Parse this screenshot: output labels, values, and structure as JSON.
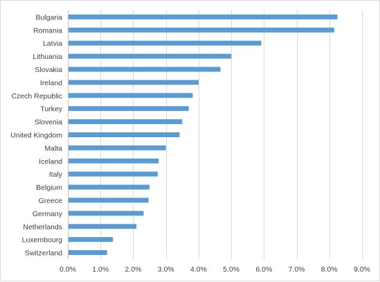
{
  "chart_data": {
    "type": "bar",
    "orientation": "horizontal",
    "categories": [
      "Bulgaria",
      "Romania",
      "Latvia",
      "Lithuania",
      "Slovakia",
      "Ireland",
      "Czech Republic",
      "Turkey",
      "Slovenia",
      "United Kingdom",
      "Malta",
      "Iceland",
      "Italy",
      "Belgium",
      "Greece",
      "Germany",
      "Netherlands",
      "Luxembourg",
      "Switzerland"
    ],
    "values": [
      8.25,
      8.15,
      5.92,
      5.0,
      4.67,
      4.0,
      3.82,
      3.7,
      3.5,
      3.42,
      3.0,
      2.78,
      2.75,
      2.5,
      2.47,
      2.32,
      2.1,
      1.38,
      1.2
    ],
    "value_unit": "%",
    "xlim": [
      0,
      9
    ],
    "x_ticks": [
      0,
      1,
      2,
      3,
      4,
      5,
      6,
      7,
      8,
      9
    ],
    "x_tick_labels": [
      "0.0%",
      "1.0%",
      "2.0%",
      "3.0%",
      "4.0%",
      "5.0%",
      "6.0%",
      "7.0%",
      "8.0%",
      "9.0%"
    ],
    "title": "",
    "xlabel": "",
    "ylabel": "",
    "grid": "vertical",
    "legend": "none",
    "colors": {
      "bar": "#5b9bd5",
      "grid": "#d9d9d9",
      "axis": "#bfbfbf",
      "text": "#404040",
      "border": "#d9d9d9"
    }
  }
}
